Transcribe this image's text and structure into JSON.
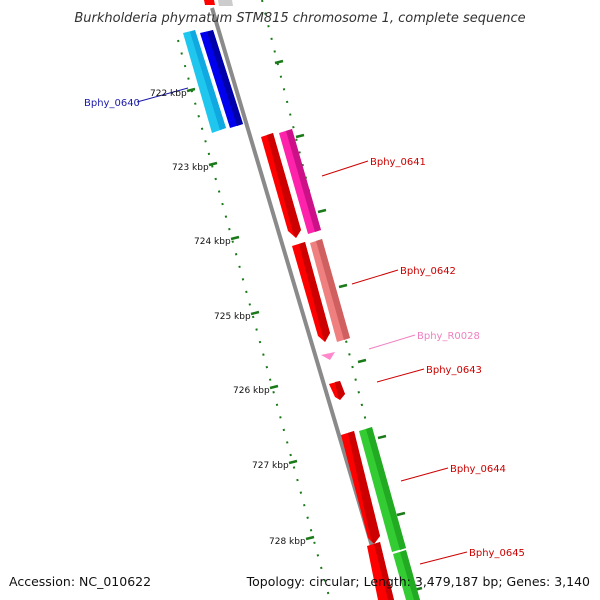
{
  "title": "Burkholderia phymatum STM815 chromosome 1, complete sequence",
  "accession": "Accession: NC_010622",
  "topology": "Topology: circular; Length: 3,479,187 bp; Genes: 3,140",
  "colors": {
    "backbone": "#8a8a8a",
    "tick": "#1a7a1a",
    "strand_bg": "#ffffff"
  },
  "scale": {
    "unit": "kbp",
    "ticks": [
      {
        "label": "722 kbp",
        "value": 722
      },
      {
        "label": "723 kbp",
        "value": 723
      },
      {
        "label": "724 kbp",
        "value": 724
      },
      {
        "label": "725 kbp",
        "value": 725
      },
      {
        "label": "726 kbp",
        "value": 726
      },
      {
        "label": "727 kbp",
        "value": 727
      },
      {
        "label": "728 kbp",
        "value": 728
      }
    ]
  },
  "features": [
    {
      "name": "Bphy_0640",
      "label_color": "#1a1aaa",
      "cds_color": "#1e90ff",
      "gene_color": "#0000ee",
      "strand": "minus"
    },
    {
      "name": "Bphy_0641",
      "label_color": "#cc0000",
      "cds_color": "#ff0000",
      "gene_color": "#ff22aa",
      "strand": "plus"
    },
    {
      "name": "Bphy_0642",
      "label_color": "#cc0000",
      "cds_color": "#ff0000",
      "gene_color": "#f08080",
      "strand": "plus"
    },
    {
      "name": "Bphy_R0028",
      "label_color": "#f080c0",
      "cds_color": "#ff88cc",
      "gene_color": "#ff88cc",
      "strand": "plus"
    },
    {
      "name": "Bphy_0643",
      "label_color": "#cc0000",
      "cds_color": "#ff0000",
      "gene_color": "#ff0000",
      "strand": "plus"
    },
    {
      "name": "Bphy_0644",
      "label_color": "#cc0000",
      "cds_color": "#ff0000",
      "gene_color": "#33cc33",
      "strand": "plus"
    },
    {
      "name": "Bphy_0645",
      "label_color": "#cc0000",
      "cds_color": "#ff0000",
      "gene_color": "#33cc33",
      "strand": "plus"
    }
  ]
}
